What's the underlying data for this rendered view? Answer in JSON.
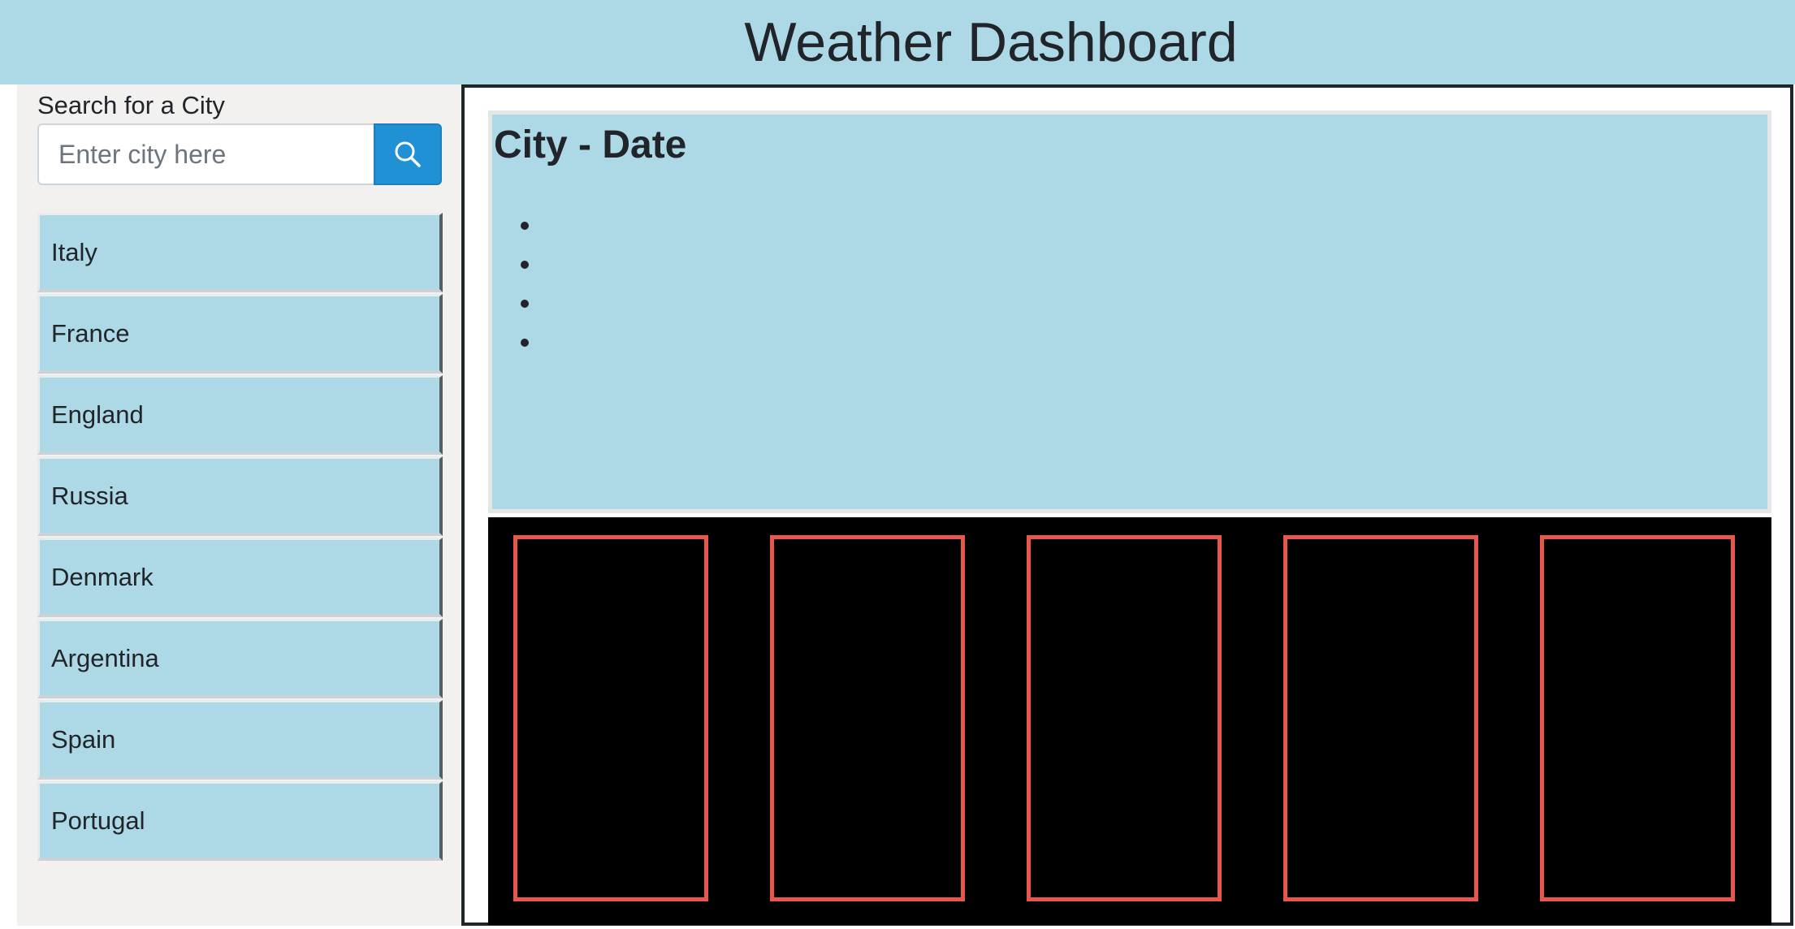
{
  "header": {
    "title": "Weather Dashboard"
  },
  "sidebar": {
    "search_label": "Search for a City",
    "search_placeholder": "Enter city here",
    "search_value": "",
    "search_button_icon": "search-icon",
    "cities": [
      "Italy",
      "France",
      "England",
      "Russia",
      "Denmark",
      "Argentina",
      "Spain",
      "Portugal"
    ]
  },
  "current": {
    "title": "City - Date",
    "details": [
      "",
      "",
      "",
      ""
    ]
  },
  "forecast": {
    "cards": [
      "",
      "",
      "",
      "",
      ""
    ]
  },
  "colors": {
    "header_bg": "#add8e6",
    "sidebar_bg": "#f2f1f0",
    "city_button_bg": "#add8e6",
    "search_button_bg": "#2191d6",
    "forecast_bg": "#000000",
    "forecast_card_border": "#e8584a"
  }
}
